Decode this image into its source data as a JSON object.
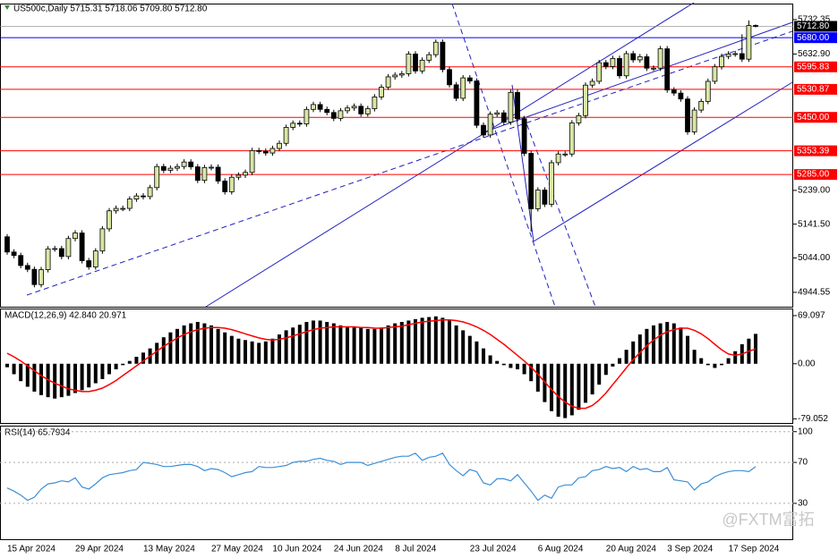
{
  "chart_data": [
    {
      "type": "candlestick",
      "title": "US500c,Daily  5715.31 5718.06 5709.80 5712.80",
      "categories": [
        "15 Apr 2024",
        null,
        null,
        null,
        null,
        null,
        null,
        null,
        null,
        null,
        "29 Apr 2024",
        null,
        null,
        null,
        null,
        null,
        null,
        null,
        null,
        null,
        "13 May 2024",
        null,
        null,
        null,
        null,
        null,
        null,
        null,
        null,
        null,
        "27 May 2024",
        null,
        null,
        null,
        null,
        null,
        null,
        null,
        null,
        "10 Jun 2024",
        null,
        null,
        null,
        null,
        null,
        null,
        null,
        null,
        "24 Jun 2024",
        null,
        null,
        null,
        null,
        null,
        null,
        null,
        null,
        "8 Jul 2024",
        null,
        null,
        null,
        null,
        null,
        null,
        null,
        null,
        null,
        null,
        "23 Jul 2024",
        null,
        null,
        null,
        null,
        null,
        null,
        null,
        null,
        null,
        "6 Aug 2024",
        null,
        null,
        null,
        null,
        null,
        null,
        null,
        null,
        null,
        "20 Aug 2024",
        null,
        null,
        null,
        null,
        null,
        null,
        null,
        null,
        "3 Sep 2024",
        null,
        null,
        null,
        null,
        null,
        null,
        null,
        null,
        "17 Sep 2024",
        null,
        null,
        null,
        null
      ],
      "open": [
        5105,
        5061,
        5051,
        5022,
        5011,
        4967,
        5010,
        5070,
        5071,
        5048,
        5100,
        5116,
        5036,
        5018,
        5064,
        5128,
        5180,
        5187,
        5187,
        5214,
        5223,
        5221,
        5247,
        5308,
        5297,
        5303,
        5308,
        5321,
        5307,
        5268,
        5305,
        5306,
        5266,
        5235,
        5277,
        5283,
        5291,
        5354,
        5352,
        5347,
        5360,
        5375,
        5421,
        5433,
        5431,
        5473,
        5487,
        5473,
        5464,
        5447,
        5469,
        5477,
        5482,
        5460,
        5475,
        5509,
        5537,
        5567,
        5572,
        5576,
        5633,
        5584,
        5615,
        5631,
        5667,
        5588,
        5544,
        5505,
        5564,
        5555,
        5427,
        5399,
        5459,
        5463,
        5436,
        5522,
        5446,
        5346,
        5186,
        5240,
        5199,
        5319,
        5344,
        5344,
        5434,
        5455,
        5543,
        5554,
        5608,
        5597,
        5620,
        5570,
        5634,
        5616,
        5625,
        5592,
        5592,
        5648,
        5529,
        5520,
        5503,
        5408,
        5471,
        5496,
        5554,
        5596,
        5626,
        5633,
        5634,
        5618,
        5715.31
      ],
      "high": [
        5113,
        5069,
        5059,
        5030,
        5019,
        5018,
        5078,
        5079,
        5079,
        5108,
        5124,
        5124,
        5044,
        5072,
        5136,
        5188,
        5195,
        5195,
        5222,
        5231,
        5231,
        5255,
        5316,
        5316,
        5311,
        5316,
        5329,
        5329,
        5315,
        5313,
        5314,
        5314,
        5274,
        5285,
        5291,
        5299,
        5362,
        5362,
        5360,
        5368,
        5383,
        5429,
        5441,
        5441,
        5481,
        5495,
        5495,
        5481,
        5472,
        5477,
        5485,
        5490,
        5490,
        5483,
        5517,
        5545,
        5575,
        5580,
        5584,
        5641,
        5641,
        5623,
        5639,
        5675,
        5675,
        5596,
        5552,
        5572,
        5572,
        5563,
        5435,
        5467,
        5471,
        5471,
        5530,
        5530,
        5454,
        5354,
        5248,
        5248,
        5327,
        5352,
        5352,
        5442,
        5463,
        5551,
        5562,
        5616,
        5616,
        5628,
        5628,
        5642,
        5642,
        5633,
        5633,
        5600,
        5656,
        5656,
        5537,
        5528,
        5511,
        5479,
        5504,
        5562,
        5604,
        5634,
        5641,
        5642,
        5690,
        5730,
        5718.06
      ],
      "low": [
        5053,
        5043,
        5014,
        5003,
        4959,
        4959,
        5002,
        5062,
        5040,
        5040,
        5092,
        5028,
        5010,
        5010,
        5056,
        5120,
        5172,
        5179,
        5179,
        5206,
        5213,
        5213,
        5239,
        5289,
        5289,
        5295,
        5300,
        5299,
        5260,
        5260,
        5297,
        5258,
        5227,
        5227,
        5269,
        5275,
        5283,
        5344,
        5339,
        5339,
        5352,
        5367,
        5413,
        5423,
        5423,
        5465,
        5465,
        5456,
        5439,
        5439,
        5461,
        5469,
        5452,
        5452,
        5467,
        5501,
        5529,
        5559,
        5564,
        5568,
        5576,
        5576,
        5607,
        5623,
        5580,
        5536,
        5497,
        5497,
        5547,
        5419,
        5391,
        5391,
        5451,
        5428,
        5428,
        5438,
        5338,
        5120,
        5178,
        5191,
        5191,
        5311,
        5336,
        5336,
        5426,
        5447,
        5535,
        5546,
        5589,
        5589,
        5562,
        5562,
        5608,
        5608,
        5584,
        5584,
        5584,
        5521,
        5512,
        5495,
        5400,
        5400,
        5463,
        5488,
        5546,
        5588,
        5618,
        5625,
        5610,
        5610,
        5709.8
      ],
      "close": [
        5061,
        5051,
        5022,
        5011,
        4967,
        5010,
        5070,
        5071,
        5048,
        5100,
        5116,
        5036,
        5018,
        5064,
        5128,
        5180,
        5187,
        5187,
        5214,
        5223,
        5221,
        5247,
        5308,
        5297,
        5303,
        5308,
        5321,
        5307,
        5268,
        5305,
        5306,
        5266,
        5235,
        5277,
        5283,
        5291,
        5354,
        5352,
        5347,
        5360,
        5375,
        5421,
        5433,
        5431,
        5473,
        5487,
        5473,
        5464,
        5447,
        5469,
        5477,
        5482,
        5460,
        5475,
        5509,
        5537,
        5567,
        5572,
        5576,
        5633,
        5584,
        5615,
        5631,
        5667,
        5588,
        5544,
        5505,
        5564,
        5555,
        5427,
        5399,
        5459,
        5463,
        5436,
        5522,
        5446,
        5346,
        5186,
        5240,
        5199,
        5319,
        5344,
        5344,
        5434,
        5455,
        5543,
        5554,
        5608,
        5597,
        5620,
        5570,
        5634,
        5616,
        5625,
        5592,
        5592,
        5648,
        5529,
        5520,
        5503,
        5408,
        5471,
        5496,
        5554,
        5596,
        5626,
        5633,
        5634,
        5618,
        5715,
        5712.8
      ],
      "up_color": "#d8e6a4",
      "down_color": "#000000",
      "ylim": [
        4903,
        5776
      ],
      "yticks": [
        5732.35,
        {
          "value": 5632.9,
          "label": "5632.90"
        },
        {
          "value": 5239,
          "label": "5239.00"
        },
        {
          "value": 5141.5,
          "label": "5141.50"
        },
        {
          "value": 5044,
          "label": "5044.00"
        },
        4944.55
      ],
      "hlines": [
        {
          "value": 5680,
          "label": "5680.00",
          "color": "#0000ff"
        },
        {
          "value": 5595.83,
          "color": "#ff0000"
        },
        {
          "value": 5530.87,
          "color": "#ff0000"
        },
        {
          "value": 5450,
          "label": "5450.00",
          "color": "#ff0000"
        },
        {
          "value": 5353.39,
          "color": "#ff0000"
        },
        {
          "value": 5285,
          "label": "5285.00",
          "color": "#ff0000"
        }
      ],
      "last_price": {
        "value": 5712.8,
        "label": "5712.80"
      },
      "watermark": "@FXTM富拓"
    },
    {
      "type": "macd",
      "title": "MACD(12,26,9) 42.840 20.971",
      "values": [
        -5,
        -15,
        -25,
        -33,
        -40,
        -45,
        -48,
        -50,
        -48,
        -46,
        -42,
        -38,
        -34,
        -28,
        -22,
        -15,
        -8,
        -2,
        4,
        10,
        16,
        22,
        30,
        38,
        45,
        50,
        55,
        58,
        60,
        58,
        55,
        50,
        45,
        40,
        36,
        34,
        32,
        30,
        32,
        36,
        42,
        48,
        52,
        56,
        60,
        62,
        62,
        60,
        58,
        55,
        53,
        52,
        52,
        50,
        50,
        52,
        55,
        58,
        60,
        62,
        64,
        66,
        67,
        68,
        66,
        62,
        55,
        48,
        40,
        32,
        22,
        12,
        4,
        -2,
        -6,
        -8,
        -15,
        -25,
        -40,
        -55,
        -68,
        -76,
        -78,
        -74,
        -66,
        -56,
        -44,
        -30,
        -16,
        -4,
        8,
        20,
        32,
        42,
        50,
        55,
        58,
        60,
        58,
        52,
        40,
        20,
        8,
        -2,
        -6,
        -2,
        8,
        18,
        28,
        36,
        42.84
      ],
      "color": "#000000",
      "signal": {
        "values": [
          15,
          10,
          4,
          -3,
          -10,
          -17,
          -23,
          -28,
          -32,
          -36,
          -38,
          -40,
          -40,
          -38,
          -35,
          -30,
          -24,
          -17,
          -10,
          -3,
          4,
          11,
          18,
          25,
          31,
          37,
          42,
          46,
          49,
          51,
          52,
          52,
          51,
          49,
          46,
          43,
          40,
          37,
          35,
          34,
          35,
          37,
          40,
          43,
          46,
          49,
          51,
          52,
          53,
          53,
          53,
          53,
          52,
          52,
          51,
          51,
          52,
          53,
          54,
          56,
          58,
          60,
          61,
          62,
          63,
          63,
          62,
          60,
          57,
          53,
          48,
          42,
          35,
          28,
          20,
          12,
          4,
          -5,
          -15,
          -26,
          -37,
          -47,
          -55,
          -61,
          -64,
          -64,
          -60,
          -52,
          -42,
          -30,
          -18,
          -6,
          6,
          16,
          26,
          34,
          41,
          46,
          49,
          51,
          51,
          48,
          43,
          36,
          28,
          20,
          14,
          12,
          14,
          18,
          20.971
        ],
        "color": "#ff0000"
      },
      "ylim": [
        -85,
        78
      ],
      "yticks": [
        69.097,
        {
          "value": 0,
          "label": "0.00"
        },
        -79.052
      ]
    },
    {
      "type": "line",
      "title": "RSI(14) 65.7934",
      "values": [
        45,
        42,
        38,
        33,
        36,
        44,
        49,
        50,
        52,
        51,
        55,
        46,
        44,
        49,
        55,
        58,
        59,
        60,
        62,
        63,
        70,
        69,
        68,
        66,
        66,
        67,
        68,
        68,
        66,
        62,
        64,
        63,
        60,
        56,
        58,
        60,
        61,
        66,
        65,
        65,
        66,
        67,
        70,
        71,
        71,
        73,
        74,
        72,
        71,
        68,
        70,
        70,
        70,
        67,
        69,
        71,
        73,
        75,
        76,
        76,
        79,
        72,
        75,
        76,
        79,
        68,
        62,
        57,
        63,
        61,
        50,
        48,
        54,
        54,
        52,
        58,
        50,
        42,
        33,
        38,
        35,
        46,
        48,
        48,
        55,
        56,
        62,
        63,
        66,
        64,
        65,
        61,
        66,
        63,
        64,
        61,
        61,
        65,
        53,
        52,
        51,
        43,
        49,
        51,
        56,
        59,
        61,
        62,
        62,
        61,
        65.7934
      ],
      "color": "#3c8fd6",
      "ylim": [
        -5,
        105
      ],
      "yticks": [
        100,
        70,
        30
      ],
      "grid": true
    }
  ]
}
